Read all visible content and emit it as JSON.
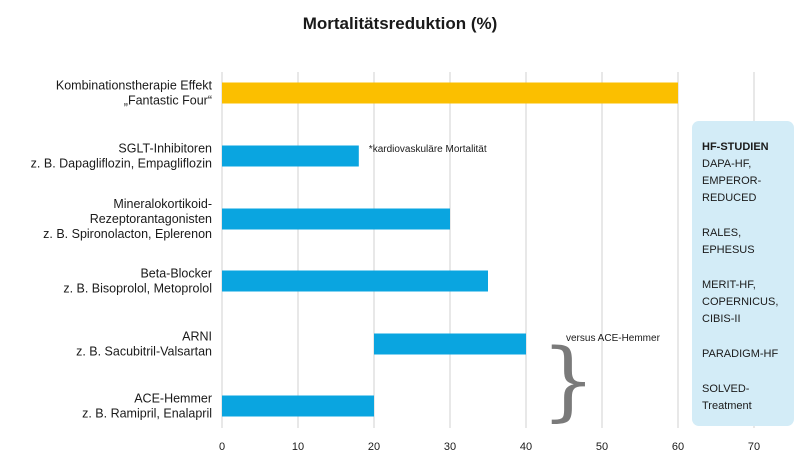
{
  "chart_data": {
    "type": "bar",
    "orientation": "horizontal",
    "title": "Mortalitätsreduktion (%)",
    "xlim": [
      0,
      70
    ],
    "xticks": [
      0,
      10,
      20,
      30,
      40,
      50,
      60,
      70
    ],
    "grid": "vertical",
    "categories": [
      {
        "lines": [
          "Kombinationstherapie Effekt",
          "„Fantastic Four“"
        ],
        "start": 0,
        "end": 60,
        "color": "#fbbf00"
      },
      {
        "lines": [
          "SGLT-Inhibitoren",
          "z. B. Dapagliflozin, Empagliflozin"
        ],
        "start": 0,
        "end": 18,
        "color": "#0aa5e0"
      },
      {
        "lines": [
          "Mineralokortikoid-",
          "Rezeptorantagonisten",
          "z. B. Spironolacton, Eplerenon"
        ],
        "start": 0,
        "end": 30,
        "color": "#0aa5e0"
      },
      {
        "lines": [
          "Beta-Blocker",
          "z. B. Bisoprolol, Metoprolol"
        ],
        "start": 0,
        "end": 35,
        "color": "#0aa5e0"
      },
      {
        "lines": [
          "ARNI",
          "z. B. Sacubitril-Valsartan"
        ],
        "start": 20,
        "end": 40,
        "color": "#0aa5e0"
      },
      {
        "lines": [
          "ACE-Hemmer",
          "z. B. Ramipril, Enalapril"
        ],
        "start": 0,
        "end": 20,
        "color": "#0aa5e0"
      }
    ],
    "annotations": {
      "sglt": "*kardiovaskuläre Mortalität",
      "arni": "versus ACE-Hemmer"
    }
  },
  "studies_box": {
    "heading": "HF-STUDIEN",
    "groups": [
      [
        "DAPA-HF,",
        "EMPEROR-",
        "REDUCED"
      ],
      [
        "RALES,",
        "EPHESUS"
      ],
      [
        "MERIT-HF,",
        "COPERNICUS,",
        "CIBIS-II"
      ],
      [
        "PARADIGM-HF"
      ],
      [
        "SOLVED-",
        "Treatment"
      ]
    ]
  }
}
